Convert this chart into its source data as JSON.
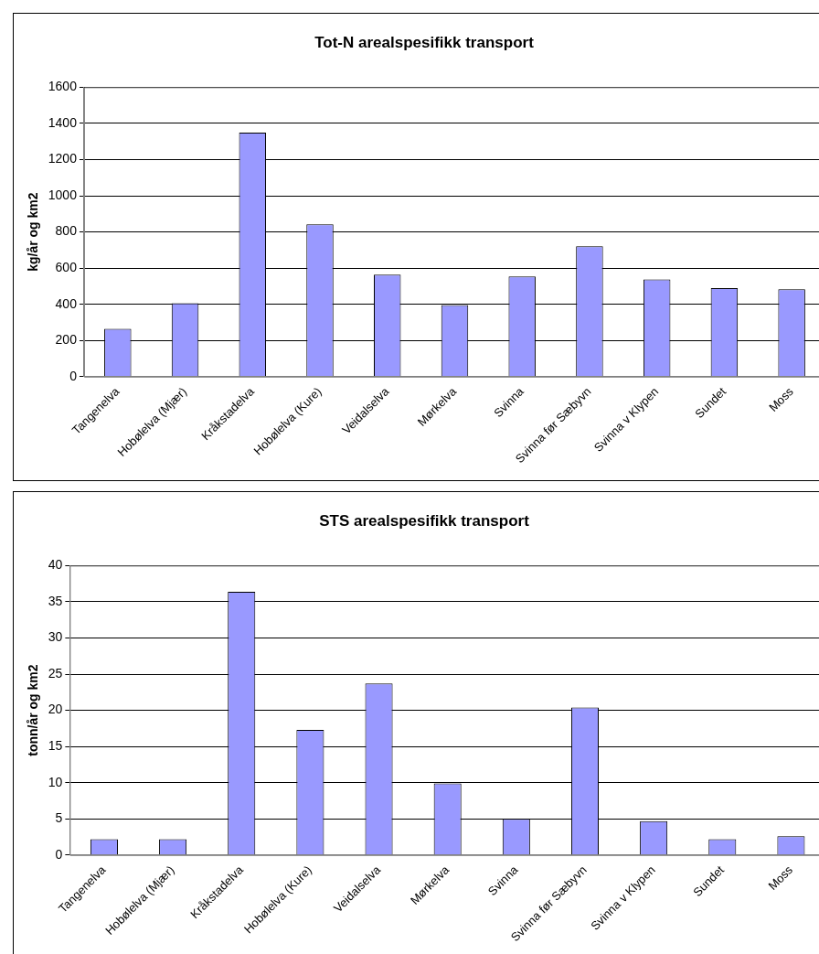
{
  "chart_data": [
    {
      "type": "bar",
      "title": "Tot-N arealspesifikk transport",
      "ylabel": "kg/år og km2",
      "categories": [
        "Tangenelva",
        "Hobølelva (Mjær)",
        "Kråkstadelva",
        "Hobølelva (Kure)",
        "Veidalselva",
        "Mørkelva",
        "Svinna",
        "Svinna før Sæbyvn",
        "Svinna v Klypen",
        "Sundet",
        "Moss"
      ],
      "values": [
        265,
        406,
        1349,
        842,
        564,
        396,
        554,
        721,
        537,
        490,
        483
      ],
      "color": "#9999ff",
      "ylim": [
        0,
        1600
      ],
      "yticks": [
        0,
        200,
        400,
        600,
        800,
        1000,
        1200,
        1400,
        1600
      ],
      "grid": "y",
      "legend": false
    },
    {
      "type": "bar",
      "title": "STS arealspesifikk transport",
      "ylabel": "tonn/år og km2",
      "categories": [
        "Tangenelva",
        "Hobølelva (Mjær)",
        "Kråkstadelva",
        "Hobølelva (Kure)",
        "Veidalselva",
        "Mørkelva",
        "Svinna",
        "Svinna før Sæbyvn",
        "Svinna v Klypen",
        "Sundet",
        "Moss"
      ],
      "values": [
        2.2,
        2.2,
        36.4,
        17.3,
        23.7,
        9.9,
        5.0,
        20.4,
        4.7,
        2.2,
        2.6
      ],
      "color": "#9999ff",
      "ylim": [
        0,
        40
      ],
      "yticks": [
        0,
        5,
        10,
        15,
        20,
        25,
        30,
        35,
        40
      ],
      "grid": "y",
      "legend": false
    }
  ]
}
